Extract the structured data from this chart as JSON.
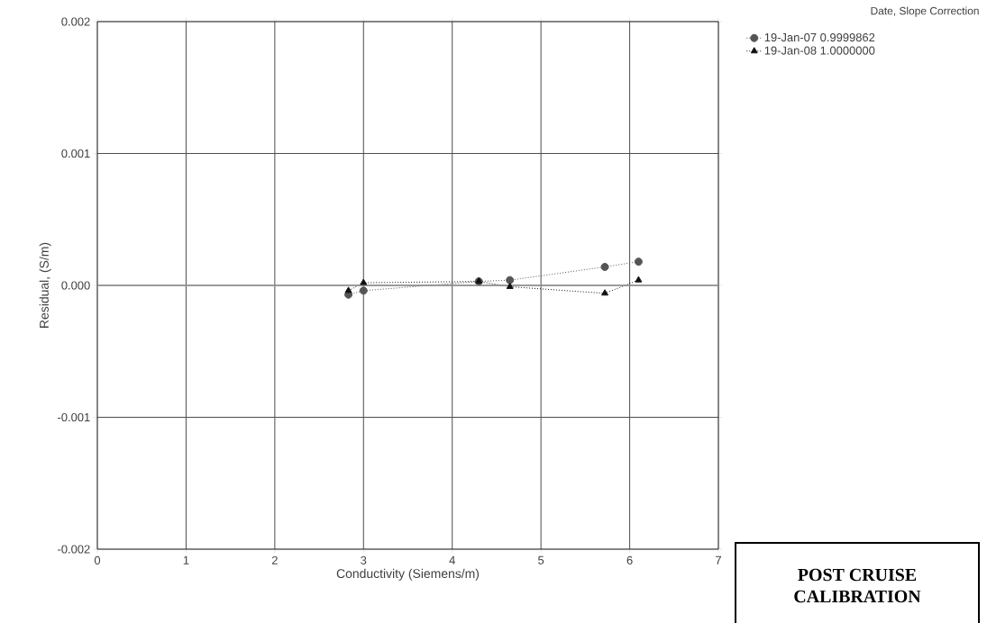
{
  "chart_data": {
    "type": "line",
    "xlabel": "Conductivity (Siemens/m)",
    "ylabel": "Residual, (S/m)",
    "legend_title": "Date, Slope Correction",
    "series": [
      {
        "name": "19-Jan-07  0.9999862",
        "color": "#555555",
        "marker": "circle",
        "line_style": "dotted",
        "x": [
          2.83,
          3.0,
          4.3,
          4.65,
          5.72,
          6.1
        ],
        "values": [
          -7e-05,
          -4e-05,
          3e-05,
          4e-05,
          0.00014,
          0.00018
        ]
      },
      {
        "name": "19-Jan-08  1.0000000",
        "color": "#111111",
        "marker": "triangle",
        "line_style": "dotted",
        "x": [
          2.83,
          3.0,
          4.3,
          4.65,
          5.72,
          6.1
        ],
        "values": [
          -4e-05,
          2e-05,
          3e-05,
          -1e-05,
          -6e-05,
          4e-05
        ]
      }
    ],
    "xlim": [
      0,
      7
    ],
    "xticks": [
      0,
      1,
      2,
      3,
      4,
      5,
      6,
      7
    ],
    "ylim": [
      -0.002,
      0.002
    ],
    "yticks": [
      {
        "value": -0.002,
        "label": "-0.002"
      },
      {
        "value": -0.001,
        "label": "-0.001"
      },
      {
        "value": 0,
        "label": "0.000"
      },
      {
        "value": 0.001,
        "label": "0.001"
      },
      {
        "value": 0.002,
        "label": "0.002"
      }
    ],
    "ref_lines": [
      {
        "axis": "y",
        "value": 0,
        "color": "#999999"
      }
    ],
    "grid": true,
    "legend": "top right",
    "annotations": [
      "POST CRUISE CALIBRATION"
    ]
  }
}
